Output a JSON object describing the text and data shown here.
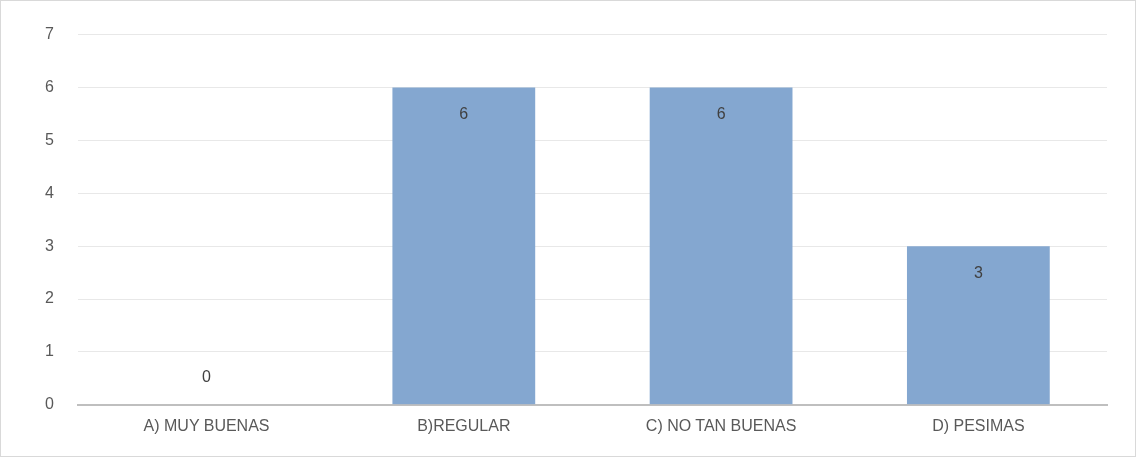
{
  "chart_data": {
    "type": "bar",
    "categories": [
      "A) MUY BUENAS",
      "B)REGULAR",
      "C) NO TAN BUENAS",
      "D) PESIMAS"
    ],
    "values": [
      0,
      6,
      6,
      3
    ],
    "color": "#84a7d0",
    "ylim": [
      0,
      7
    ],
    "yticks": [
      0,
      1,
      2,
      3,
      4,
      5,
      6,
      7
    ],
    "grid": "y",
    "data_labels": true
  }
}
